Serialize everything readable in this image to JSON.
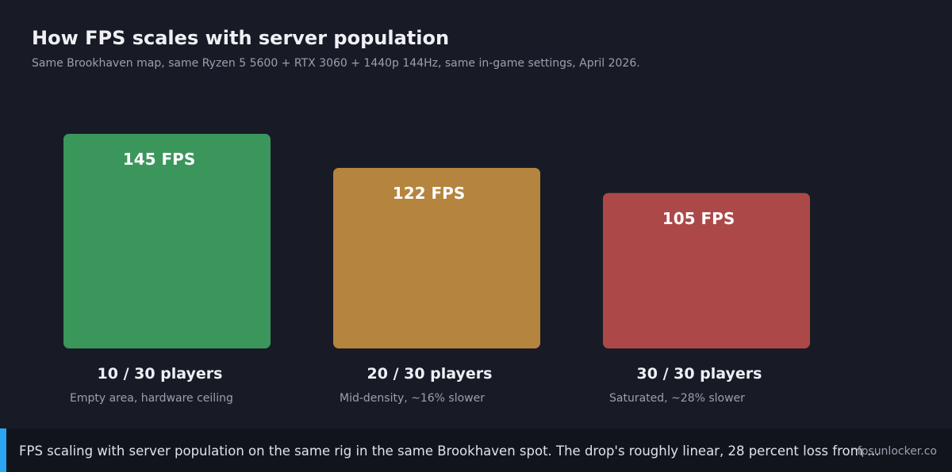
{
  "header": {
    "title": "How FPS scales with server population",
    "subtitle": "Same Brookhaven map, same Ryzen 5 5600 + RTX 3060 + 1440p 144Hz, same in-game settings, April 2026."
  },
  "chart_data": {
    "type": "bar",
    "categories": [
      "10 / 30 players",
      "20 / 30 players",
      "30 / 30 players"
    ],
    "values": [
      145,
      122,
      105
    ],
    "value_labels": [
      "145 FPS",
      "122 FPS",
      "105 FPS"
    ],
    "descriptions": [
      "Empty area, hardware ceiling",
      "Mid-density, ~16% slower",
      "Saturated, ~28% slower"
    ],
    "colors": [
      "#3b965c",
      "#b5843e",
      "#ad4848"
    ],
    "ylim": [
      0,
      145
    ],
    "grid": false,
    "legend": "none"
  },
  "caption": {
    "text": "FPS scaling with server population on the same rig in the same Brookhaven spot. The drop's roughly linear, 28 percent loss from ...",
    "site": "fpsunlocker.co"
  },
  "colors": {
    "background": "#181b26",
    "caption_background": "#12141c",
    "accent": "#2aa5f0"
  }
}
